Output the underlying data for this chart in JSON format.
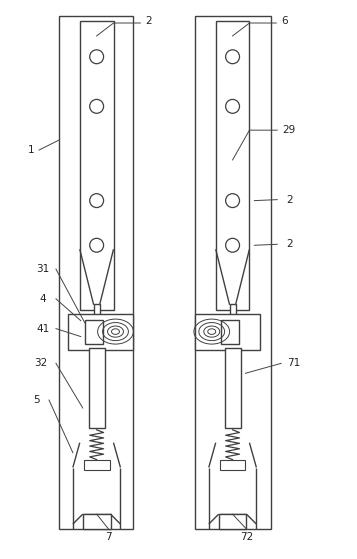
{
  "lc": "#404040",
  "lw": 1.0,
  "fig_w": 3.57,
  "fig_h": 5.59,
  "dpi": 100
}
